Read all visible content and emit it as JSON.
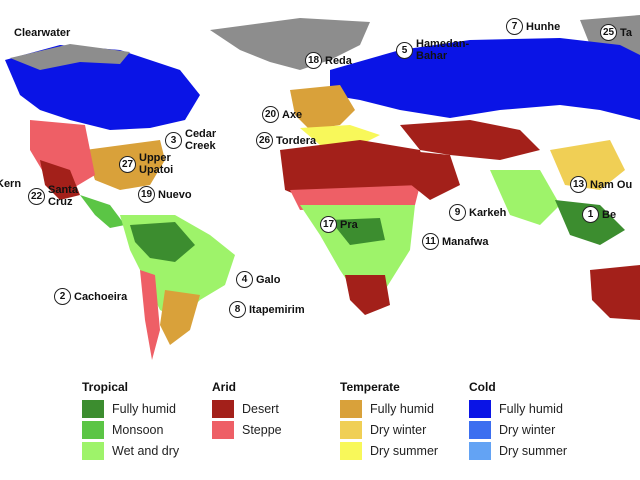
{
  "markers": [
    {
      "num": "",
      "name": "Clearwater"
    },
    {
      "num": "7",
      "name": "Hunhe"
    },
    {
      "num": "25",
      "name": "Ta"
    },
    {
      "num": "18",
      "name": "Reda"
    },
    {
      "num": "5",
      "name": "Hamedan-\nBahar"
    },
    {
      "num": "20",
      "name": "Axe"
    },
    {
      "num": "26",
      "name": "Tordera"
    },
    {
      "num": "3",
      "name": "Cedar\nCreek"
    },
    {
      "num": "27",
      "name": "Upper\nUpatoi"
    },
    {
      "num": "",
      "name": "Kern"
    },
    {
      "num": "22",
      "name": "Santa\nCruz"
    },
    {
      "num": "19",
      "name": "Nuevo"
    },
    {
      "num": "13",
      "name": "Nam Ou"
    },
    {
      "num": "1",
      "name": "Be"
    },
    {
      "num": "9",
      "name": "Karkeh"
    },
    {
      "num": "17",
      "name": "Pra"
    },
    {
      "num": "11",
      "name": "Manafwa"
    },
    {
      "num": "4",
      "name": "Galo"
    },
    {
      "num": "2",
      "name": "Cachoeira"
    },
    {
      "num": "8",
      "name": "Itapemirim"
    }
  ],
  "legend": [
    {
      "title": "Tropical",
      "items": [
        {
          "label": "Fully humid",
          "color": "#3c8d2f"
        },
        {
          "label": "Monsoon",
          "color": "#5bc545"
        },
        {
          "label": "Wet and dry",
          "color": "#9ef36a"
        }
      ]
    },
    {
      "title": "Arid",
      "items": [
        {
          "label": "Desert",
          "color": "#a3201a"
        },
        {
          "label": "Steppe",
          "color": "#ee5f66"
        }
      ]
    },
    {
      "title": "Temperate",
      "items": [
        {
          "label": "Fully humid",
          "color": "#d9a13a"
        },
        {
          "label": "Dry winter",
          "color": "#f0cf55"
        },
        {
          "label": "Dry summer",
          "color": "#f8f85a"
        }
      ]
    },
    {
      "title": "Cold",
      "items": [
        {
          "label": "Fully humid",
          "color": "#0a14e6"
        },
        {
          "label": "Dry winter",
          "color": "#3b6ef0"
        },
        {
          "label": "Dry summer",
          "color": "#63a3f4"
        }
      ]
    }
  ]
}
